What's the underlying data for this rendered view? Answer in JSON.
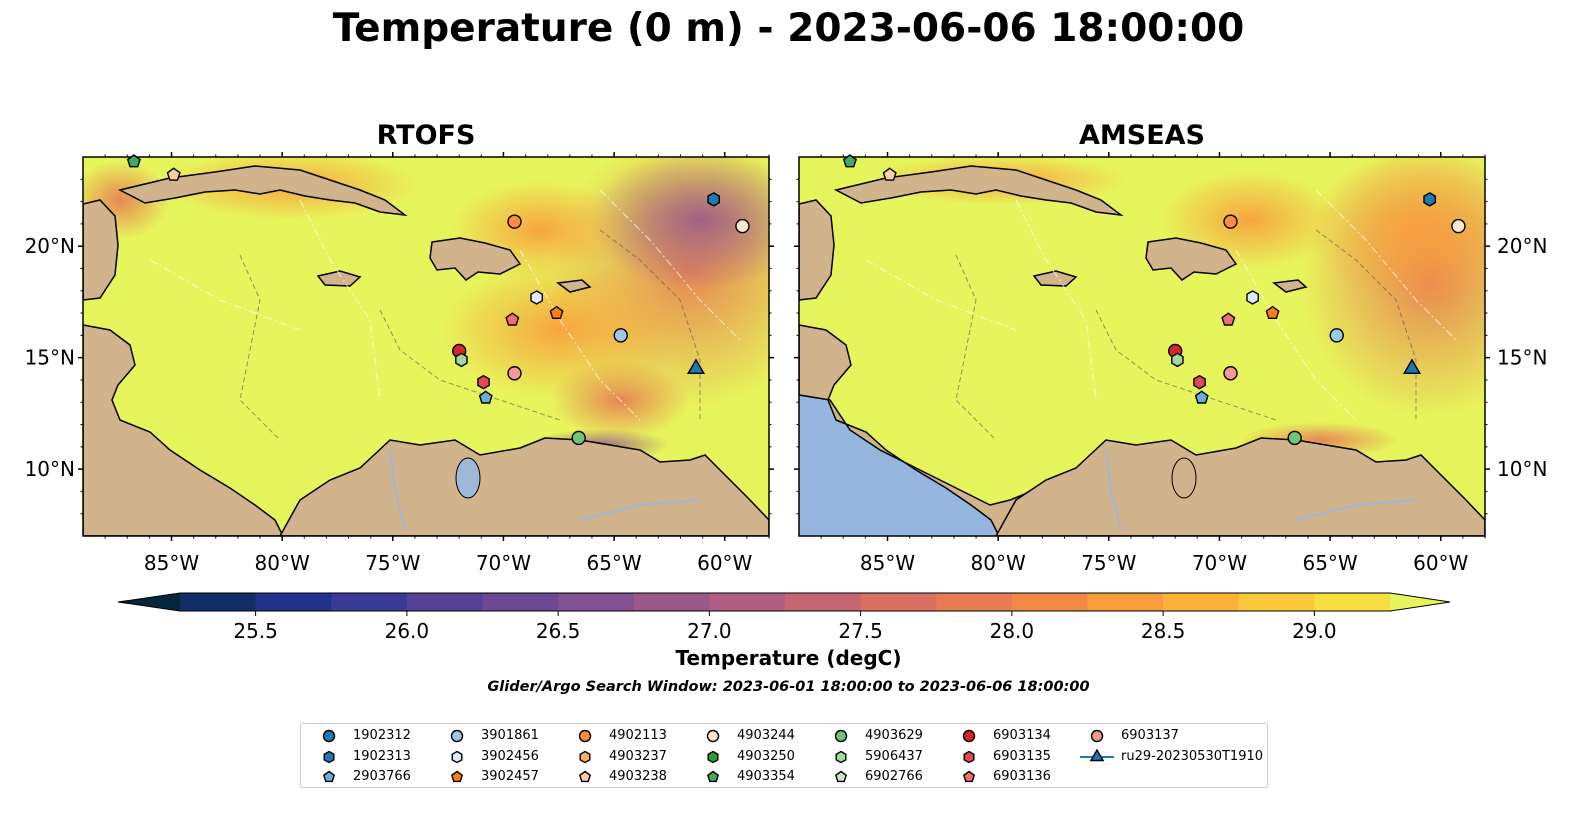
{
  "title": "Temperature (0 m) - 2023-06-06 18:00:00",
  "panels": [
    {
      "title": "RTOFS"
    },
    {
      "title": "AMSEAS"
    }
  ],
  "lon_labels": [
    "85°W",
    "80°W",
    "75°W",
    "70°W",
    "65°W",
    "60°W"
  ],
  "lat_labels": [
    "20°N",
    "15°N",
    "10°N"
  ],
  "colorbar": {
    "label": "Temperature (degC)",
    "ticks": [
      "25.5",
      "26.0",
      "26.5",
      "27.0",
      "27.5",
      "28.0",
      "28.5",
      "29.0"
    ],
    "colors": [
      "#05263d",
      "#102f66",
      "#22328c",
      "#3b3996",
      "#554296",
      "#6c4a93",
      "#82518f",
      "#9a588a",
      "#b05e81",
      "#c56673",
      "#d96e62",
      "#e77b52",
      "#f28a45",
      "#f99d3c",
      "#fbb23a",
      "#fbc83b",
      "#f5df41",
      "#e7f55c"
    ],
    "range": [
      25.25,
      29.25
    ]
  },
  "search_window": "Glider/Argo Search Window: 2023-06-01 18:00:00 to 2023-06-06 18:00:00",
  "legend": [
    {
      "label": "1902312",
      "marker": "circle",
      "color": "#1f77b4"
    },
    {
      "label": "1902313",
      "marker": "hexagon",
      "color": "#1f77b4"
    },
    {
      "label": "2903766",
      "marker": "pentagon",
      "color": "#6baed6"
    },
    {
      "label": "3901861",
      "marker": "circle",
      "color": "#9ecae1"
    },
    {
      "label": "3902456",
      "marker": "hexagon",
      "color": "#deebf7"
    },
    {
      "label": "3902457",
      "marker": "pentagon",
      "color": "#ff7f0e"
    },
    {
      "label": "4902113",
      "marker": "circle",
      "color": "#fd8d3c"
    },
    {
      "label": "4903237",
      "marker": "hexagon",
      "color": "#fdae6b"
    },
    {
      "label": "4903238",
      "marker": "pentagon",
      "color": "#fdd0a2"
    },
    {
      "label": "4903244",
      "marker": "circle",
      "color": "#fee6ce"
    },
    {
      "label": "4903250",
      "marker": "hexagon",
      "color": "#2ca02c"
    },
    {
      "label": "4903354",
      "marker": "pentagon",
      "color": "#41ab5d"
    },
    {
      "label": "4903629",
      "marker": "circle",
      "color": "#74c476"
    },
    {
      "label": "5906437",
      "marker": "hexagon",
      "color": "#a1d99b"
    },
    {
      "label": "6902766",
      "marker": "pentagon",
      "color": "#c7e9c0"
    },
    {
      "label": "6903134",
      "marker": "circle",
      "color": "#d62728"
    },
    {
      "label": "6903135",
      "marker": "hexagon",
      "color": "#e34a4b"
    },
    {
      "label": "6903136",
      "marker": "pentagon",
      "color": "#f07070"
    },
    {
      "label": "6903137",
      "marker": "circle",
      "color": "#f29a94"
    },
    {
      "label": "ru29-20230530T1910",
      "marker": "triangle",
      "color": "#1f77b4"
    }
  ],
  "map_data": {
    "lon_range": [
      -89,
      -58
    ],
    "lat_range": [
      7,
      24
    ],
    "floats": [
      {
        "id": "1902313",
        "lon": -60.5,
        "lat": 22.1
      },
      {
        "id": "4903244",
        "lon": -59.2,
        "lat": 20.9
      },
      {
        "id": "4902113",
        "lon": -69.5,
        "lat": 21.1
      },
      {
        "id": "4903238",
        "lon": -84.9,
        "lat": 23.2
      },
      {
        "id": "4903354",
        "lon": -86.7,
        "lat": 23.8
      },
      {
        "id": "3902456",
        "lon": -68.5,
        "lat": 17.7
      },
      {
        "id": "3902457",
        "lon": -67.6,
        "lat": 17.0
      },
      {
        "id": "6903136",
        "lon": -69.6,
        "lat": 16.7
      },
      {
        "id": "3901861",
        "lon": -64.7,
        "lat": 16.0
      },
      {
        "id": "6903134",
        "lon": -72.0,
        "lat": 15.3
      },
      {
        "id": "5906437",
        "lon": -71.9,
        "lat": 14.9
      },
      {
        "id": "6903137",
        "lon": -69.5,
        "lat": 14.3
      },
      {
        "id": "6903135",
        "lon": -70.9,
        "lat": 13.9
      },
      {
        "id": "2903766",
        "lon": -70.8,
        "lat": 13.2
      },
      {
        "id": "4903629",
        "lon": -66.6,
        "lat": 11.4
      },
      {
        "id": "ru29-20230530T1910",
        "lon": -61.3,
        "lat": 14.5
      }
    ]
  }
}
